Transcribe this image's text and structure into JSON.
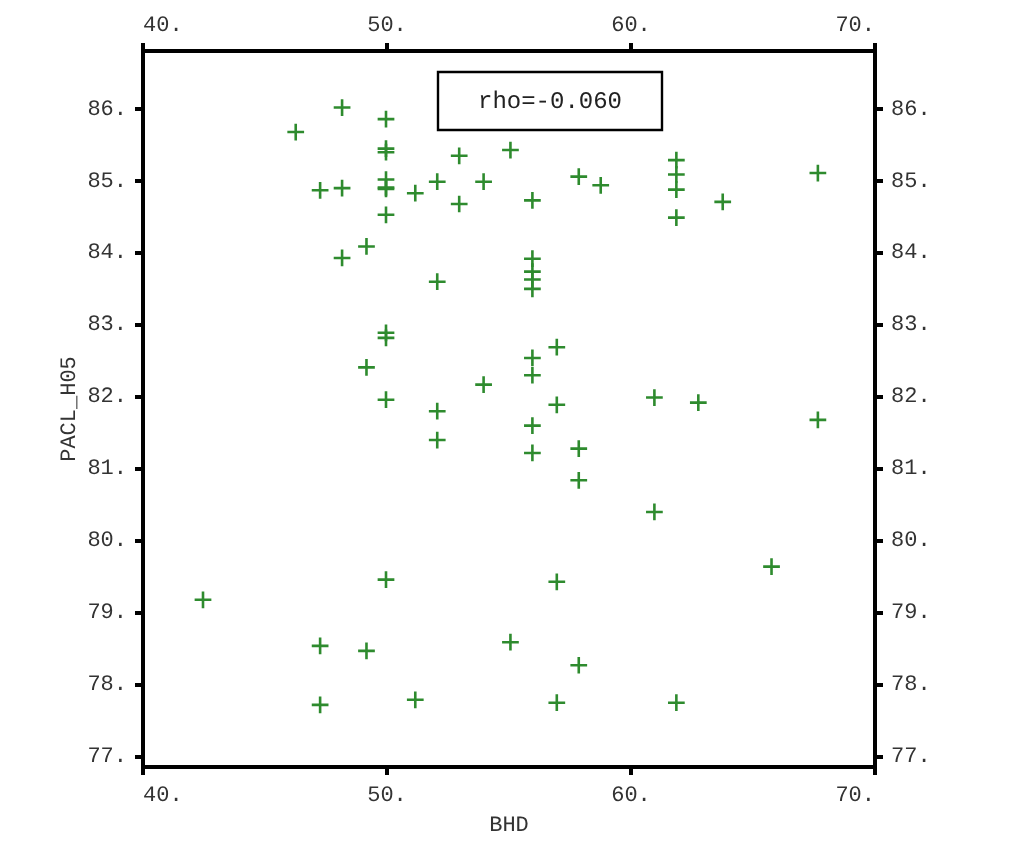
{
  "chart_data": {
    "type": "scatter",
    "xlabel": "BHD",
    "ylabel": "PACL_H05",
    "annotations": [
      "rho=-0.060"
    ],
    "marker": "cross",
    "xlim": [
      40,
      70
    ],
    "ylim": [
      76.85,
      86.8
    ],
    "xticks": [
      {
        "value": 40,
        "label": "40."
      },
      {
        "value": 50,
        "label": "50."
      },
      {
        "value": 60,
        "label": "60."
      },
      {
        "value": 70,
        "label": "70."
      }
    ],
    "x2lim": [
      40,
      70
    ],
    "x2ticks": [
      {
        "value": 40,
        "label": "40."
      },
      {
        "value": 50,
        "label": "50."
      },
      {
        "value": 60,
        "label": "60."
      },
      {
        "value": 70,
        "label": "70."
      }
    ],
    "yticks": [
      {
        "value": 77,
        "label": "77."
      },
      {
        "value": 78,
        "label": "78."
      },
      {
        "value": 79,
        "label": "79."
      },
      {
        "value": 80,
        "label": "80."
      },
      {
        "value": 81,
        "label": "81."
      },
      {
        "value": 82,
        "label": "82."
      },
      {
        "value": 83,
        "label": "83."
      },
      {
        "value": 84,
        "label": "84."
      },
      {
        "value": 85,
        "label": "85."
      },
      {
        "value": 86,
        "label": "86."
      }
    ],
    "y2lim": [
      76.85,
      86.8
    ],
    "y2ticks": [
      {
        "value": 77,
        "label": "77."
      },
      {
        "value": 78,
        "label": "78."
      },
      {
        "value": 79,
        "label": "79."
      },
      {
        "value": 80,
        "label": "80."
      },
      {
        "value": 81,
        "label": "81."
      },
      {
        "value": 82,
        "label": "82."
      },
      {
        "value": 83,
        "label": "83."
      },
      {
        "value": 84,
        "label": "84."
      },
      {
        "value": 85,
        "label": "85."
      },
      {
        "value": 86,
        "label": "86."
      }
    ],
    "series": [
      {
        "color": "#2e8b2e",
        "x": [
          46.3,
          48.2,
          50,
          50,
          50,
          53,
          55.1,
          47.3,
          48.2,
          50,
          50,
          50,
          51.2,
          52.1,
          53,
          54,
          56,
          57.9,
          58.8,
          61.9,
          61.9,
          61.9,
          61.9,
          63.8,
          67.7,
          48.2,
          49.2,
          50,
          52.1,
          56,
          56,
          56,
          56,
          50,
          50,
          57,
          49.2,
          56,
          56,
          54,
          50,
          52.1,
          52.1,
          57,
          56,
          56,
          57.9,
          57.9,
          61,
          62.8,
          67.7,
          61,
          65.8,
          50,
          57,
          42.5,
          47.3,
          49.2,
          55.1,
          57.9,
          47.3,
          51.2,
          57,
          61.9
        ],
        "values": [
          85.66,
          86.0,
          85.84,
          85.43,
          85.38,
          85.33,
          85.41,
          84.85,
          84.88,
          85.0,
          84.89,
          84.87,
          84.81,
          84.97,
          84.66,
          84.97,
          84.71,
          85.04,
          84.92,
          85.27,
          85.07,
          84.86,
          84.47,
          84.69,
          85.09,
          83.91,
          84.07,
          84.51,
          83.58,
          83.9,
          83.72,
          83.61,
          83.48,
          82.87,
          82.8,
          82.67,
          82.39,
          82.52,
          82.28,
          82.15,
          81.94,
          81.78,
          81.38,
          81.87,
          81.58,
          81.2,
          81.26,
          80.82,
          81.97,
          81.9,
          81.66,
          80.38,
          79.62,
          79.44,
          79.41,
          79.16,
          78.52,
          78.45,
          78.57,
          78.25,
          77.7,
          77.77,
          77.73,
          77.73
        ]
      }
    ]
  }
}
